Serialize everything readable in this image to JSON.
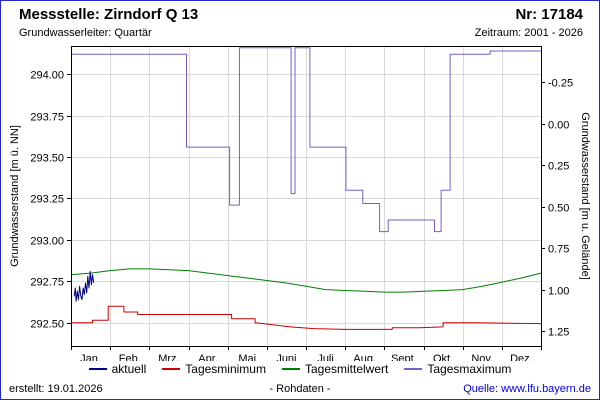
{
  "page": {
    "border_color": "#2424cc",
    "background": "#ffffff"
  },
  "header": {
    "title": "Messstelle: Zirndorf Q 13",
    "number": "Nr: 17184",
    "aquifer": "Grundwasserleiter: Quartär",
    "period": "Zeitraum: 2001 - 2026"
  },
  "footer": {
    "created": "erstellt: 19.01.2026",
    "center": "- Rohdaten -",
    "source": "Quelle: www.lfu.bayern.de",
    "link_color": "#0000dd"
  },
  "chart_data": {
    "type": "line",
    "title": "",
    "xlabel": "",
    "ylabel_left": "Grundwasserstand [m ü. NN]",
    "ylabel_right": "Grundwasserstand [m u. Gelände]",
    "x_tick_labels": [
      "Jan.",
      "Feb.",
      "Mrz.",
      "Apr.",
      "Mai",
      "Juni",
      "Juli",
      "Aug.",
      "Sept.",
      "Okt.",
      "Nov.",
      "Dez."
    ],
    "x_domain": [
      0,
      12
    ],
    "ylim_left": [
      292.36,
      294.17
    ],
    "left_tick_values": [
      292.5,
      292.75,
      293.0,
      293.25,
      293.5,
      293.75,
      294.0
    ],
    "left_tick_labels": [
      "292.50",
      "292.75",
      "293.00",
      "293.25",
      "293.50",
      "293.75",
      "294.00"
    ],
    "right_tick_values": [
      -0.25,
      0.0,
      0.25,
      0.5,
      0.75,
      1.0,
      1.25
    ],
    "right_tick_labels": [
      "-0.25",
      "0.00",
      "0.25",
      "0.50",
      "0.75",
      "1.00",
      "1.25"
    ],
    "right_axis_inverted": true,
    "ground_elevation_m": 293.7,
    "grid": true,
    "grid_color": "#d9d9d9",
    "legend_position": "bottom",
    "series": [
      {
        "name": "aktuell",
        "color": "#00008b",
        "points": [
          [
            0.08,
            292.66
          ],
          [
            0.11,
            292.71
          ],
          [
            0.13,
            292.63
          ],
          [
            0.16,
            292.69
          ],
          [
            0.19,
            292.64
          ],
          [
            0.22,
            292.72
          ],
          [
            0.25,
            292.66
          ],
          [
            0.28,
            292.64
          ],
          [
            0.31,
            292.71
          ],
          [
            0.34,
            292.67
          ],
          [
            0.37,
            292.74
          ],
          [
            0.4,
            292.68
          ],
          [
            0.43,
            292.78
          ],
          [
            0.46,
            292.71
          ],
          [
            0.49,
            292.81
          ],
          [
            0.52,
            292.73
          ],
          [
            0.55,
            292.79
          ],
          [
            0.58,
            292.74
          ]
        ]
      },
      {
        "name": "Tagesminimum",
        "color": "#cc0000",
        "points": [
          [
            0,
            292.5
          ],
          [
            0.55,
            292.5
          ],
          [
            0.55,
            292.515
          ],
          [
            0.95,
            292.515
          ],
          [
            0.95,
            292.6
          ],
          [
            1.35,
            292.6
          ],
          [
            1.35,
            292.565
          ],
          [
            1.7,
            292.565
          ],
          [
            1.7,
            292.55
          ],
          [
            4.1,
            292.55
          ],
          [
            4.1,
            292.525
          ],
          [
            4.7,
            292.525
          ],
          [
            4.7,
            292.5
          ],
          [
            5.1,
            292.49
          ],
          [
            5.6,
            292.475
          ],
          [
            6.2,
            292.465
          ],
          [
            7.0,
            292.46
          ],
          [
            8.2,
            292.46
          ],
          [
            8.2,
            292.47
          ],
          [
            8.9,
            292.47
          ],
          [
            9.5,
            292.475
          ],
          [
            9.5,
            292.5
          ],
          [
            10.3,
            292.5
          ],
          [
            12,
            292.495
          ]
        ]
      },
      {
        "name": "Tagesmittelwert",
        "color": "#008000",
        "points": [
          [
            0,
            292.79
          ],
          [
            0.5,
            292.8
          ],
          [
            1.0,
            292.815
          ],
          [
            1.5,
            292.825
          ],
          [
            2.0,
            292.825
          ],
          [
            2.5,
            292.82
          ],
          [
            3.0,
            292.815
          ],
          [
            3.5,
            292.8
          ],
          [
            4.0,
            292.785
          ],
          [
            4.5,
            292.77
          ],
          [
            5.0,
            292.755
          ],
          [
            5.5,
            292.74
          ],
          [
            6.0,
            292.72
          ],
          [
            6.5,
            292.7
          ],
          [
            7.0,
            292.695
          ],
          [
            7.5,
            292.69
          ],
          [
            8.0,
            292.685
          ],
          [
            8.5,
            292.685
          ],
          [
            9.0,
            292.69
          ],
          [
            9.5,
            292.695
          ],
          [
            10.0,
            292.7
          ],
          [
            10.5,
            292.72
          ],
          [
            11.0,
            292.745
          ],
          [
            11.5,
            292.77
          ],
          [
            12,
            292.8
          ]
        ]
      },
      {
        "name": "Tagesmaximum",
        "color": "#7a5dc7",
        "points": [
          [
            0,
            294.12
          ],
          [
            2.95,
            294.12
          ],
          [
            2.95,
            293.56
          ],
          [
            4.05,
            293.56
          ],
          [
            4.05,
            293.21
          ],
          [
            4.3,
            293.21
          ],
          [
            4.3,
            294.16
          ],
          [
            5.62,
            294.16
          ],
          [
            5.62,
            293.28
          ],
          [
            5.72,
            293.28
          ],
          [
            5.72,
            294.16
          ],
          [
            6.1,
            294.16
          ],
          [
            6.1,
            293.56
          ],
          [
            7.02,
            293.56
          ],
          [
            7.02,
            293.3
          ],
          [
            7.45,
            293.3
          ],
          [
            7.45,
            293.22
          ],
          [
            7.88,
            293.22
          ],
          [
            7.88,
            293.05
          ],
          [
            8.1,
            293.05
          ],
          [
            8.1,
            293.12
          ],
          [
            9.28,
            293.12
          ],
          [
            9.28,
            293.05
          ],
          [
            9.45,
            293.05
          ],
          [
            9.45,
            293.3
          ],
          [
            9.68,
            293.3
          ],
          [
            9.68,
            294.12
          ],
          [
            10.7,
            294.12
          ],
          [
            10.7,
            294.14
          ],
          [
            12,
            294.14
          ]
        ]
      }
    ]
  }
}
